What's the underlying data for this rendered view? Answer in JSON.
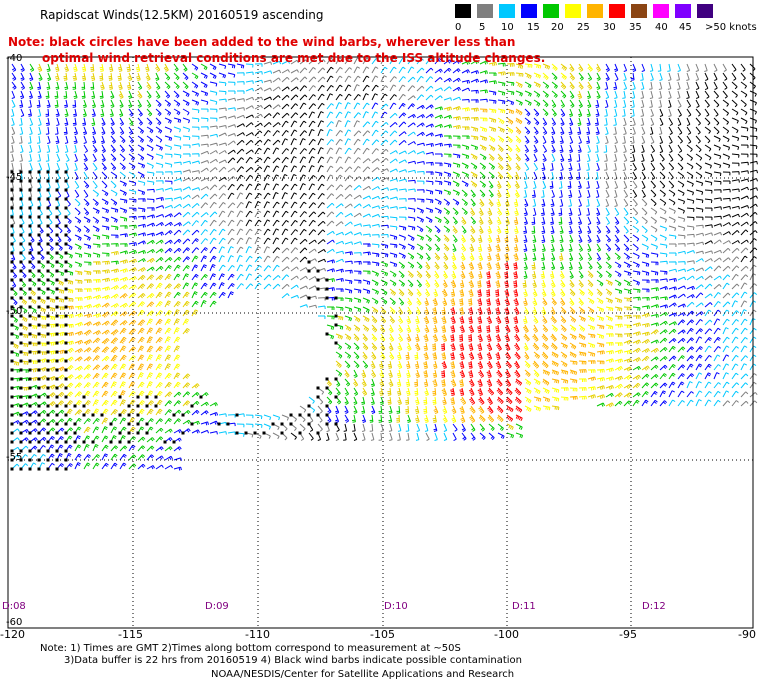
{
  "header": {
    "title": "Rapidscat Winds(12.5KM) 20160519 ascending",
    "note_line1": "Note: black circles have been added to the wind barbs, wherever less than",
    "note_line2": "optimal wind retrieval conditions are met due to the ISS altitude changes."
  },
  "legend": {
    "labels": [
      "0",
      "5",
      "10",
      "15",
      "20",
      "25",
      "30",
      "35",
      "40",
      "45",
      ">50 knots"
    ],
    "colors": [
      "#000000",
      "#7f7f7f",
      "#00c8ff",
      "#0000ff",
      "#00c800",
      "#ffff00",
      "#ffb400",
      "#ff0000",
      "#8b4513",
      "#ff00ff",
      "#7f00ff",
      "#400080"
    ]
  },
  "axes": {
    "lon_labels": [
      "-120",
      "-115",
      "-110",
      "-105",
      "-100",
      "-95",
      "-90"
    ],
    "lat_labels": [
      "-40",
      "-45",
      "-50",
      "-55",
      "-60"
    ],
    "day_labels": [
      "D:08",
      "D:09",
      "D:10",
      "D:11",
      "D:12"
    ]
  },
  "footer": {
    "line1": "Note: 1) Times are GMT 2)Times along bottom correspond to measurement at ~50S",
    "line2": "3)Data buffer is 22 hrs from 20160519 4) Black wind barbs indicate possible contamination",
    "line3": "NOAA/NESDIS/Center for Satellite Applications and Research"
  }
}
